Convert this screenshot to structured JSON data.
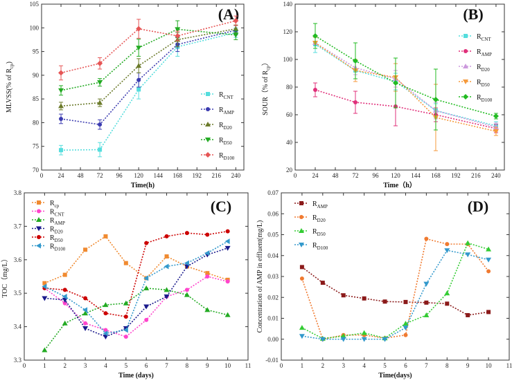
{
  "chart_data": [
    {
      "type": "line",
      "panel": "(A)",
      "xlabel": "Time(h)",
      "ylabel": "MLVSS(% of R",
      "ylabel_sub": "cp",
      "ylabel_suffix": ")",
      "xlim": [
        0,
        250
      ],
      "ylim": [
        70,
        105
      ],
      "xticks": [
        0,
        24,
        48,
        72,
        96,
        120,
        144,
        168,
        192,
        216,
        240
      ],
      "yticks": [
        70,
        75,
        80,
        85,
        90,
        95,
        100,
        105
      ],
      "legend": "right",
      "series": [
        {
          "name": "R",
          "sub": "CNT",
          "color": "#55dddd",
          "marker": "square",
          "x": [
            24,
            72,
            120,
            168,
            240
          ],
          "y": [
            74.2,
            74.3,
            87.0,
            96.0,
            99.0
          ],
          "err": [
            1.0,
            1.5,
            2.0,
            2.0,
            1.0
          ]
        },
        {
          "name": "R",
          "sub": "AMP",
          "color": "#3b3bb0",
          "marker": "circle",
          "x": [
            24,
            72,
            120,
            168,
            240
          ],
          "y": [
            80.8,
            79.6,
            89.0,
            96.5,
            99.5
          ],
          "err": [
            1.0,
            1.0,
            1.5,
            1.5,
            1.0
          ]
        },
        {
          "name": "R",
          "sub": "D20",
          "color": "#6b7a2a",
          "marker": "triangle-up",
          "x": [
            24,
            72,
            120,
            168,
            240
          ],
          "y": [
            83.5,
            84.2,
            92.0,
            97.5,
            99.8
          ],
          "err": [
            0.8,
            0.8,
            1.5,
            1.5,
            0.8
          ]
        },
        {
          "name": "R",
          "sub": "D50",
          "color": "#22aa22",
          "marker": "triangle-down",
          "x": [
            24,
            72,
            120,
            168,
            240
          ],
          "y": [
            86.8,
            88.5,
            95.8,
            99.7,
            98.5
          ],
          "err": [
            1.0,
            0.8,
            1.8,
            1.8,
            1.0
          ]
        },
        {
          "name": "R",
          "sub": "D100",
          "color": "#e65555",
          "marker": "diamond",
          "x": [
            24,
            72,
            120,
            168,
            240
          ],
          "y": [
            90.5,
            92.5,
            99.8,
            98.3,
            101.5
          ],
          "err": [
            1.5,
            1.2,
            2.0,
            1.0,
            1.0
          ]
        }
      ]
    },
    {
      "type": "line",
      "panel": "(B)",
      "xlabel": "Time（h）",
      "ylabel": "SOUR（% of R",
      "ylabel_sub": "cp",
      "ylabel_suffix": "）",
      "xlim": [
        0,
        250
      ],
      "ylim": [
        20,
        140
      ],
      "xticks": [
        0,
        24,
        48,
        72,
        96,
        120,
        144,
        168,
        192,
        216,
        240
      ],
      "yticks": [
        20,
        40,
        60,
        80,
        100,
        120,
        140
      ],
      "legend": "right",
      "series": [
        {
          "name": "R",
          "sub": "CNT",
          "color": "#55dddd",
          "marker": "square",
          "x": [
            24,
            72,
            120,
            168,
            240
          ],
          "y": [
            111,
            92,
            84,
            63,
            52
          ],
          "err": [
            6,
            6,
            6,
            5,
            3
          ]
        },
        {
          "name": "R",
          "sub": "AMP",
          "color": "#e0307a",
          "marker": "circle",
          "x": [
            24,
            72,
            120,
            168,
            240
          ],
          "y": [
            78,
            69,
            66,
            60,
            50
          ],
          "err": [
            5,
            8,
            14,
            5,
            3
          ]
        },
        {
          "name": "R",
          "sub": "D20",
          "color": "#cc99dd",
          "marker": "triangle-up",
          "x": [
            24,
            72,
            120,
            168,
            240
          ],
          "y": [
            112,
            94,
            86,
            63,
            51
          ],
          "err": [
            4,
            5,
            6,
            6,
            3
          ]
        },
        {
          "name": "R",
          "sub": "D50",
          "color": "#f59a3c",
          "marker": "triangle-down",
          "x": [
            24,
            72,
            120,
            168,
            240
          ],
          "y": [
            112,
            92,
            87,
            58,
            48
          ],
          "err": [
            4,
            8,
            10,
            24,
            3
          ]
        },
        {
          "name": "R",
          "sub": "D100",
          "color": "#22bb22",
          "marker": "diamond",
          "x": [
            24,
            72,
            120,
            168,
            240
          ],
          "y": [
            117,
            99,
            83,
            71,
            59
          ],
          "err": [
            9,
            13,
            18,
            22,
            2
          ]
        }
      ]
    },
    {
      "type": "line",
      "panel": "(C)",
      "xlabel": "Time (days)",
      "ylabel": "TOC（mg/L）",
      "xlim": [
        0,
        11
      ],
      "ylim": [
        3.3,
        3.8
      ],
      "xticks": [
        0,
        1,
        2,
        3,
        4,
        5,
        6,
        7,
        8,
        9,
        10,
        11
      ],
      "yticks": [
        3.3,
        3.4,
        3.5,
        3.6,
        3.7,
        3.8
      ],
      "ytick_labels": [
        "3.3",
        "3.4",
        "3.5",
        "3.6",
        "3.7",
        "3.8"
      ],
      "legend": "top-left",
      "series": [
        {
          "name": "R",
          "sub": "cp",
          "color": "#f08a30",
          "marker": "square",
          "x": [
            1,
            2,
            3,
            4,
            5,
            6,
            7,
            8,
            9,
            10
          ],
          "y": [
            3.53,
            3.555,
            3.63,
            3.67,
            3.59,
            3.545,
            3.61,
            3.58,
            3.56,
            3.54
          ]
        },
        {
          "name": "R",
          "sub": "CNT",
          "color": "#ff44cc",
          "marker": "circle",
          "x": [
            1,
            2,
            3,
            4,
            5,
            6,
            7,
            8,
            9,
            10
          ],
          "y": [
            3.515,
            3.47,
            3.41,
            3.39,
            3.37,
            3.42,
            3.49,
            3.51,
            3.55,
            3.535
          ]
        },
        {
          "name": "R",
          "sub": "AMP",
          "color": "#22aa22",
          "marker": "triangle-up",
          "x": [
            1,
            2,
            3,
            4,
            5,
            6,
            7,
            8,
            9,
            10
          ],
          "y": [
            3.33,
            3.41,
            3.44,
            3.465,
            3.47,
            3.515,
            3.51,
            3.495,
            3.45,
            3.435
          ]
        },
        {
          "name": "R",
          "sub": "D20",
          "color": "#1a1a8c",
          "marker": "triangle-down",
          "x": [
            1,
            2,
            3,
            4,
            5,
            6,
            7,
            8,
            9,
            10
          ],
          "y": [
            3.485,
            3.48,
            3.395,
            3.37,
            3.395,
            3.46,
            3.49,
            3.58,
            3.615,
            3.635
          ]
        },
        {
          "name": "R",
          "sub": "D50",
          "color": "#cc0000",
          "marker": "circle",
          "x": [
            1,
            2,
            3,
            4,
            5,
            6,
            7,
            8,
            9,
            10
          ],
          "y": [
            3.515,
            3.51,
            3.485,
            3.44,
            3.43,
            3.65,
            3.67,
            3.68,
            3.675,
            3.685
          ]
        },
        {
          "name": "R",
          "sub": "D100",
          "color": "#3399cc",
          "marker": "triangle-left",
          "x": [
            1,
            2,
            3,
            4,
            5,
            6,
            7,
            8,
            9,
            10
          ],
          "y": [
            3.52,
            3.49,
            3.45,
            3.38,
            3.39,
            3.545,
            3.58,
            3.59,
            3.62,
            3.655
          ]
        }
      ]
    },
    {
      "type": "line",
      "panel": "(D)",
      "xlabel": "Time(days)",
      "ylabel": "Concentration of AMP in effluent(mg/L)",
      "xlim": [
        0,
        11
      ],
      "ylim": [
        -0.01,
        0.07
      ],
      "xticks": [
        0,
        1,
        2,
        3,
        4,
        5,
        6,
        7,
        8,
        9,
        10,
        11
      ],
      "yticks": [
        -0.01,
        0.0,
        0.01,
        0.02,
        0.03,
        0.04,
        0.05,
        0.06,
        0.07
      ],
      "ytick_labels": [
        "-0.01",
        "0.00",
        "0.01",
        "0.02",
        "0.03",
        "0.04",
        "0.05",
        "0.06",
        "0.07"
      ],
      "legend": "top-left",
      "series": [
        {
          "name": "R",
          "sub": "AMP",
          "color": "#8b1a1a",
          "marker": "square",
          "x": [
            1,
            2,
            3,
            4,
            5,
            6,
            7,
            8,
            9,
            10
          ],
          "y": [
            0.0345,
            0.027,
            0.021,
            0.0195,
            0.018,
            0.0178,
            0.0175,
            0.017,
            0.0115,
            0.013
          ]
        },
        {
          "name": "R",
          "sub": "D20",
          "color": "#f07a30",
          "marker": "circle",
          "x": [
            1,
            2,
            3,
            4,
            5,
            6,
            7,
            8,
            9,
            10
          ],
          "y": [
            0.029,
            0.0,
            0.002,
            0.002,
            0.0005,
            0.002,
            0.048,
            0.0455,
            0.0455,
            0.0325
          ]
        },
        {
          "name": "R",
          "sub": "D50",
          "color": "#33cc33",
          "marker": "triangle-up",
          "x": [
            1,
            2,
            3,
            4,
            5,
            6,
            7,
            8,
            9,
            10
          ],
          "y": [
            0.0055,
            0.0003,
            0.0015,
            0.003,
            0.0005,
            0.0075,
            0.0115,
            0.022,
            0.046,
            0.043
          ]
        },
        {
          "name": "R",
          "sub": "D100",
          "color": "#3399cc",
          "marker": "triangle-down",
          "x": [
            1,
            2,
            3,
            4,
            5,
            6,
            7,
            8,
            9,
            10
          ],
          "y": [
            0.0015,
            0.0,
            0.0,
            0.0,
            0.0,
            0.0055,
            0.0265,
            0.0425,
            0.0405,
            0.038
          ]
        }
      ]
    }
  ]
}
